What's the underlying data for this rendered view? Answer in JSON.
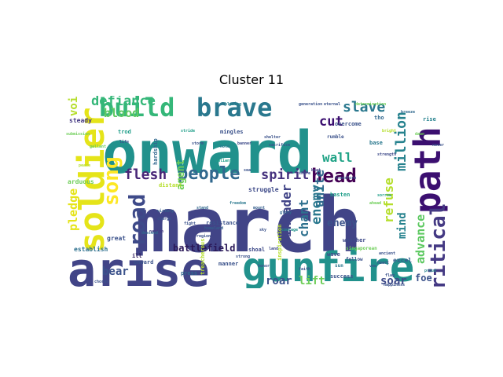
{
  "chart_data": {
    "type": "wordcloud",
    "title": "Cluster 11",
    "words": [
      {
        "text": "onward",
        "color": "#21918c",
        "rotated": false
      },
      {
        "text": "march",
        "color": "#414487",
        "rotated": false
      },
      {
        "text": "arise",
        "color": "#414487",
        "rotated": false
      },
      {
        "text": "gunfire",
        "color": "#21918c",
        "rotated": false
      },
      {
        "text": "soldier",
        "color": "#e5e419",
        "rotated": true
      },
      {
        "text": "path",
        "color": "#3b0f70",
        "rotated": true
      },
      {
        "text": "build",
        "color": "#35b779",
        "rotated": false
      },
      {
        "text": "brave",
        "color": "#2a788e",
        "rotated": false
      },
      {
        "text": "critical",
        "color": "#443983",
        "rotated": true
      },
      {
        "text": "road",
        "color": "#3e4a89",
        "rotated": true
      },
      {
        "text": "song",
        "color": "#fde725",
        "rotated": true
      },
      {
        "text": "people",
        "color": "#31688e",
        "rotated": false
      },
      {
        "text": "head",
        "color": "#440154",
        "rotated": false
      },
      {
        "text": "spirit",
        "color": "#46327e",
        "rotated": false
      },
      {
        "text": "flesh",
        "color": "#482677",
        "rotated": false
      },
      {
        "text": "defiance",
        "color": "#35b779",
        "rotated": false
      },
      {
        "text": "blood",
        "color": "#5ec962",
        "rotated": false
      },
      {
        "text": "slave",
        "color": "#2a788e",
        "rotated": false
      },
      {
        "text": "cut",
        "color": "#3b0f70",
        "rotated": false
      },
      {
        "text": "wall",
        "color": "#20a386",
        "rotated": false
      },
      {
        "text": "million",
        "color": "#26828e",
        "rotated": true
      },
      {
        "text": "unite",
        "color": "#31688e",
        "rotated": true
      },
      {
        "text": "enemy",
        "color": "#2a788e",
        "rotated": true
      },
      {
        "text": "refuse",
        "color": "#b5de2b",
        "rotated": true
      },
      {
        "text": "chant",
        "color": "#2d708e",
        "rotated": true
      },
      {
        "text": "invader",
        "color": "#414487",
        "rotated": true
      },
      {
        "text": "enemy",
        "color": "#3b528b",
        "rotated": false
      },
      {
        "text": "mind",
        "color": "#26828e",
        "rotated": true
      },
      {
        "text": "advance",
        "color": "#5ec962",
        "rotated": true
      },
      {
        "text": "pledge",
        "color": "#e5e419",
        "rotated": true
      },
      {
        "text": "voice",
        "color": "#b5de2b",
        "rotated": true
      },
      {
        "text": "agent",
        "color": "#6ece58",
        "rotated": true
      },
      {
        "text": "battlefield",
        "color": "#2a1858",
        "rotated": false
      },
      {
        "text": "bear",
        "color": "#3b528b",
        "rotated": false
      },
      {
        "text": "roar",
        "color": "#3b528b",
        "rotated": false
      },
      {
        "text": "lift",
        "color": "#6ece58",
        "rotated": false
      },
      {
        "text": "soar",
        "color": "#3e4a89",
        "rotated": false
      },
      {
        "text": "foe",
        "color": "#3b528b",
        "rotated": false
      },
      {
        "text": "excel",
        "color": "#355f8d",
        "rotated": false
      },
      {
        "text": "steady",
        "color": "#443983",
        "rotated": false
      },
      {
        "text": "arduous",
        "color": "#6ece58",
        "rotated": false
      },
      {
        "text": "great",
        "color": "#3b528b",
        "rotated": false
      },
      {
        "text": "establish",
        "color": "#2d708e",
        "rotated": false
      },
      {
        "text": "resistance",
        "color": "#3b528b",
        "rotated": false
      },
      {
        "text": "struggle",
        "color": "#3e4a89",
        "rotated": false
      },
      {
        "text": "overcome",
        "color": "#3b528b",
        "rotated": false
      },
      {
        "text": "base",
        "color": "#2a788e",
        "rotated": false
      },
      {
        "text": "rise",
        "color": "#26828e",
        "rotated": false
      },
      {
        "text": "tho",
        "color": "#31688e",
        "rotated": false
      },
      {
        "text": "distant",
        "color": "#b5de2b",
        "rotated": false
      },
      {
        "text": "trod",
        "color": "#1f9e89",
        "rotated": false
      },
      {
        "text": "hardship",
        "color": "#31688e",
        "rotated": true
      },
      {
        "text": "mingles",
        "color": "#3b528b",
        "rotated": false
      },
      {
        "text": "rumble",
        "color": "#3b528b",
        "rotated": false
      },
      {
        "text": "shoal",
        "color": "#3e4a89",
        "rotated": false
      },
      {
        "text": "press",
        "color": "#31688e",
        "rotated": false
      },
      {
        "text": "weather",
        "color": "#3e4a89",
        "rotated": false
      },
      {
        "text": "wave",
        "color": "#3e4a89",
        "rotated": false
      },
      {
        "text": "singaporean",
        "color": "#6ece58",
        "rotated": false
      },
      {
        "text": "success",
        "color": "#3b528b",
        "rotated": false
      },
      {
        "text": "hasten",
        "color": "#1f9e89",
        "rotated": false
      },
      {
        "text": "fellow",
        "color": "#3b528b",
        "rotated": false
      },
      {
        "text": "onward",
        "color": "#3b528b",
        "rotated": false
      },
      {
        "text": "ill",
        "color": "#2a1858",
        "rotated": false
      },
      {
        "text": "manner",
        "color": "#3b528b",
        "rotated": false
      },
      {
        "text": "inspiration",
        "color": "#b5de2b",
        "rotated": true
      },
      {
        "text": "generation",
        "color": "#3b528b",
        "rotated": false
      },
      {
        "text": "sun",
        "color": "#2a788e",
        "rotated": false
      },
      {
        "text": "beat",
        "color": "#443983",
        "rotated": false
      },
      {
        "text": "shelter",
        "color": "#3b528b",
        "rotated": false
      },
      {
        "text": "sacrifice",
        "color": "#3b528b",
        "rotated": false
      },
      {
        "text": "glory",
        "color": "#31688e",
        "rotated": false
      },
      {
        "text": "freedom",
        "color": "#2a788e",
        "rotated": false
      },
      {
        "text": "homeland",
        "color": "#355f8d",
        "rotated": false
      },
      {
        "text": "banner",
        "color": "#3e4a89",
        "rotated": false
      },
      {
        "text": "dawn",
        "color": "#6ece58",
        "rotated": false
      },
      {
        "text": "valiant",
        "color": "#1f9e89",
        "rotated": false
      },
      {
        "text": "honor",
        "color": "#3b528b",
        "rotated": false
      },
      {
        "text": "courage",
        "color": "#21918c",
        "rotated": false
      },
      {
        "text": "strength",
        "color": "#3e4a89",
        "rotated": false
      },
      {
        "text": "bright",
        "color": "#b5de2b",
        "rotated": false
      },
      {
        "text": "victory",
        "color": "#355f8d",
        "rotated": false
      },
      {
        "text": "fight",
        "color": "#3b528b",
        "rotated": false
      },
      {
        "text": "stand",
        "color": "#31688e",
        "rotated": false
      },
      {
        "text": "chorus",
        "color": "#3b528b",
        "rotated": false
      },
      {
        "text": "flag",
        "color": "#3b528b",
        "rotated": false
      },
      {
        "text": "nation",
        "color": "#443983",
        "rotated": false
      },
      {
        "text": "heart",
        "color": "#3b528b",
        "rotated": false
      },
      {
        "text": "eternal",
        "color": "#3b528b",
        "rotated": false
      },
      {
        "text": "determination",
        "color": "#6ece58",
        "rotated": false
      },
      {
        "text": "blazing",
        "color": "#26828e",
        "rotated": false
      },
      {
        "text": "breeze",
        "color": "#31688e",
        "rotated": false
      },
      {
        "text": "happiness",
        "color": "#3b528b",
        "rotated": false
      },
      {
        "text": "ancient",
        "color": "#3b528b",
        "rotated": false
      },
      {
        "text": "submission",
        "color": "#6ece58",
        "rotated": false
      },
      {
        "text": "sorrow",
        "color": "#1f9e89",
        "rotated": false
      },
      {
        "text": "treacherous",
        "color": "#b5de2b",
        "rotated": true
      },
      {
        "text": "transform",
        "color": "#3b528b",
        "rotated": false
      },
      {
        "text": "region",
        "color": "#3b528b",
        "rotated": false
      },
      {
        "text": "mount",
        "color": "#355f8d",
        "rotated": false
      },
      {
        "text": "sky",
        "color": "#3b528b",
        "rotated": false
      },
      {
        "text": "land",
        "color": "#3e4a89",
        "rotated": false
      },
      {
        "text": "hold",
        "color": "#2a788e",
        "rotated": false
      },
      {
        "text": "sea",
        "color": "#3b528b",
        "rotated": false
      },
      {
        "text": "never",
        "color": "#3b528b",
        "rotated": false
      },
      {
        "text": "ahead",
        "color": "#6ece58",
        "rotated": false
      },
      {
        "text": "charge",
        "color": "#3b528b",
        "rotated": false
      },
      {
        "text": "descend",
        "color": "#31688e",
        "rotated": false
      },
      {
        "text": "stride",
        "color": "#1f9e89",
        "rotated": false
      },
      {
        "text": "strong",
        "color": "#3b528b",
        "rotated": false
      },
      {
        "text": "faith",
        "color": "#3b528b",
        "rotated": false
      },
      {
        "text": "gallant",
        "color": "#6ece58",
        "rotated": false
      },
      {
        "text": "vow",
        "color": "#3b528b",
        "rotated": false
      },
      {
        "text": "life",
        "color": "#3b528b",
        "rotated": false
      },
      {
        "text": "shore",
        "color": "#3e4a89",
        "rotated": false
      },
      {
        "text": "storm",
        "color": "#3b528b",
        "rotated": false
      },
      {
        "text": "proud",
        "color": "#26828e",
        "rotated": false
      },
      {
        "text": "peace",
        "color": "#b5de2b",
        "rotated": false
      }
    ]
  }
}
